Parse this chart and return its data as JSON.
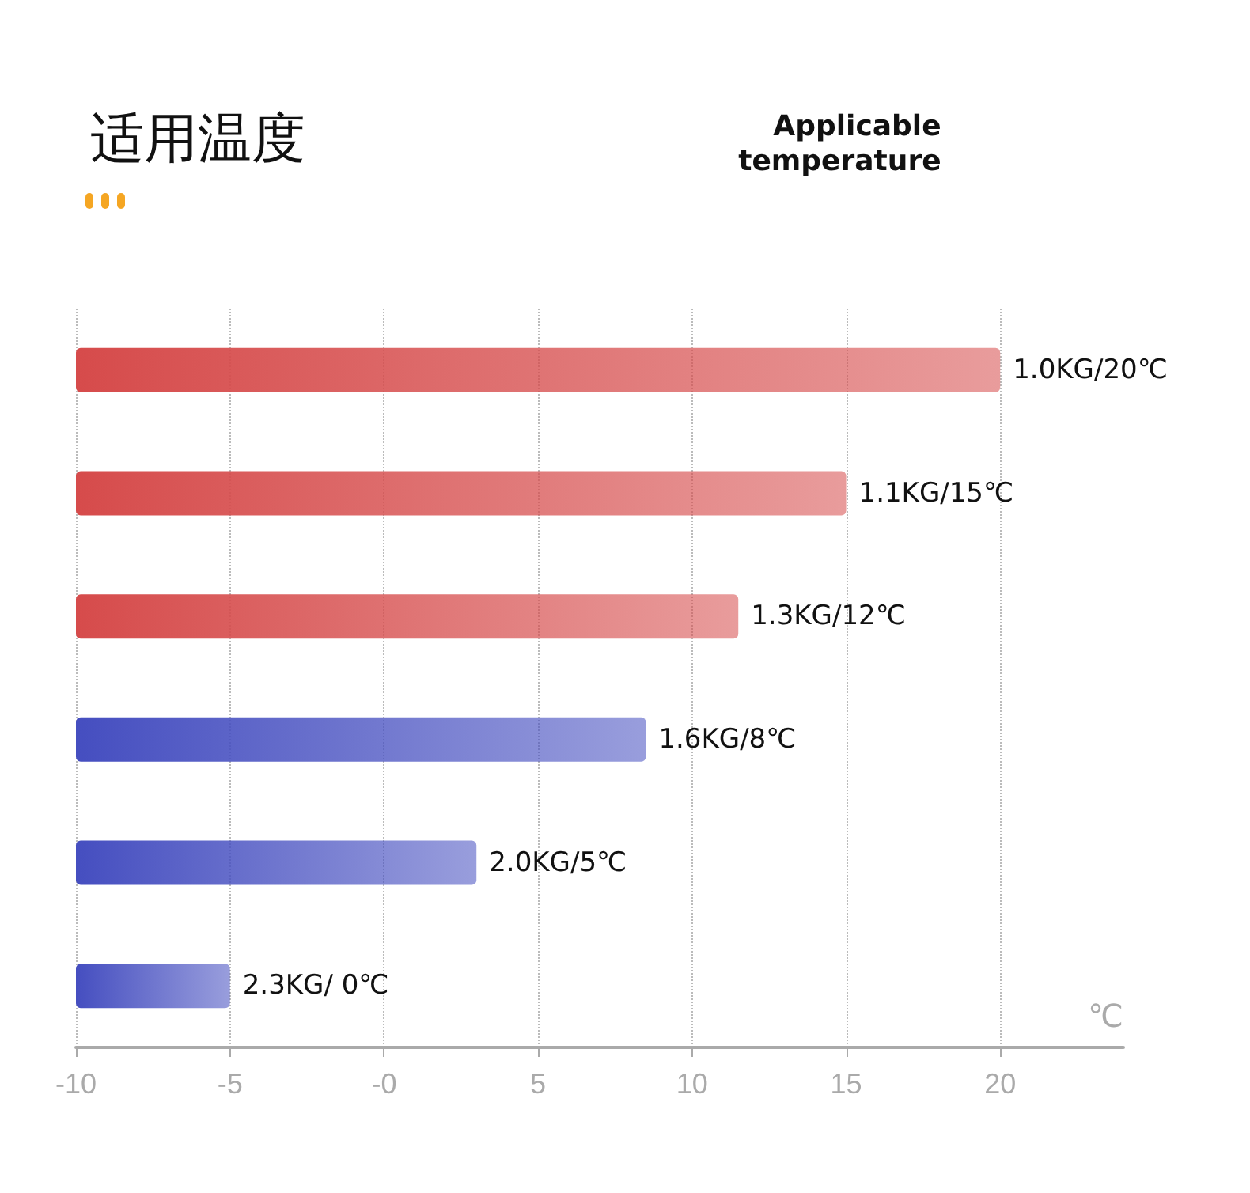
{
  "chart_data": {
    "type": "bar",
    "orientation": "horizontal",
    "title": "适用温度",
    "subtitle": "Applicable\ntemperature",
    "xlabel": "℃",
    "categories": [
      null,
      null,
      null,
      null,
      null,
      null
    ],
    "base": [
      -10,
      -10,
      -10,
      -10,
      -10,
      -10
    ],
    "values": [
      30,
      25,
      21.5,
      18.5,
      13,
      5
    ],
    "colors": [
      "#d64b4b",
      "#d64b4b",
      "#d64b4b",
      "#454ec0",
      "#454ec0",
      "#454ec0"
    ],
    "annotations": [
      "1.0KG/20℃",
      "1.1KG/15℃",
      "1.3KG/12℃",
      "1.6KG/8℃",
      "2.0KG/5℃",
      "2.3KG/ 0℃"
    ],
    "xlim": [
      -10,
      24
    ],
    "xticks": [
      -10,
      -5,
      {
        "value": 0,
        "label": "-0"
      },
      5,
      10,
      15,
      20
    ],
    "grid": "x",
    "tick_labels": "x"
  }
}
